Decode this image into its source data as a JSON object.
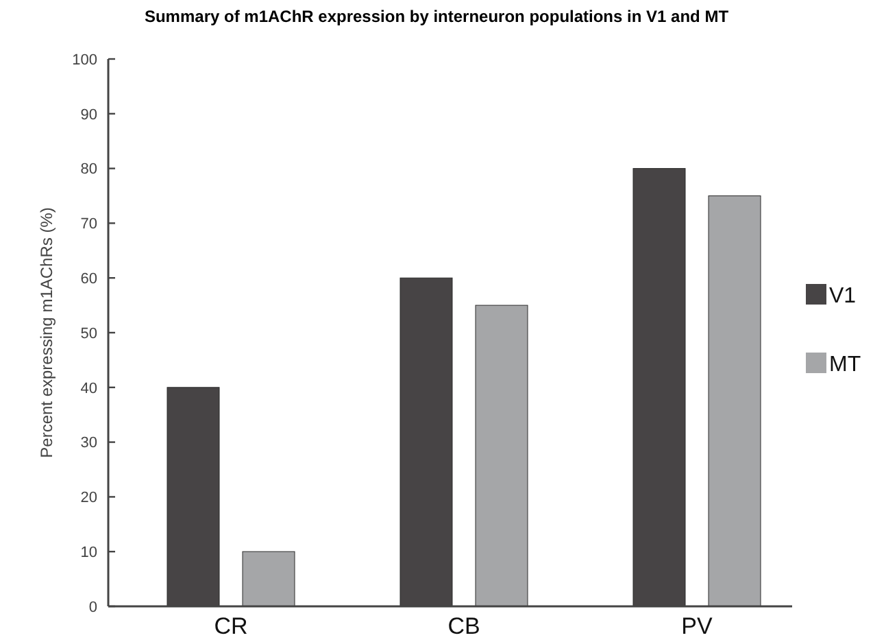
{
  "chart_data": {
    "type": "bar",
    "title": "Summary of m1AChR expression by interneuron populations in V1 and MT",
    "ylabel": "Percent expressing m1AChRs (%)",
    "categories": [
      "CR",
      "CB",
      "PV"
    ],
    "series": [
      {
        "name": "V1",
        "color": "#474445",
        "values": [
          40,
          60,
          80
        ]
      },
      {
        "name": "MT",
        "color": "#a5a6a8",
        "values": [
          10,
          55,
          75
        ]
      }
    ],
    "ylim": [
      0,
      100
    ],
    "yticks": [
      0,
      10,
      20,
      30,
      40,
      50,
      60,
      70,
      80,
      90,
      100
    ],
    "grid": false,
    "legend": "right"
  }
}
